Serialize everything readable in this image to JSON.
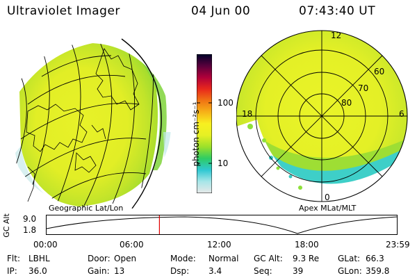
{
  "header": {
    "title": "Ultraviolet Imager",
    "date": "04 Jun 00",
    "time": "07:43:40 UT"
  },
  "left_panel": {
    "caption": "Geographic Lat/Lon"
  },
  "right_panel": {
    "caption": "Apex MLat/MLT",
    "mlt_labels": [
      "12",
      "18",
      "6",
      "0"
    ],
    "lat_labels": [
      "60",
      "70",
      "80"
    ]
  },
  "colorbar": {
    "unit_label": "photon cm⁻²s⁻¹",
    "tick_labels": [
      "100",
      "10"
    ],
    "colors": [
      "#e8e8e8",
      "#a8e6e8",
      "#2fc8d2",
      "#2ecc64",
      "#9be02a",
      "#e6f024",
      "#f8f020",
      "#f6b218",
      "#f07414",
      "#e8281c",
      "#b0003a",
      "#58003c",
      "#000028"
    ]
  },
  "altitude": {
    "axis_label": "GC Alt",
    "y_ticks": [
      "9.0",
      "1.8"
    ],
    "x_ticks": [
      "00:00",
      "06:00",
      "12:00",
      "18:00",
      "23:59"
    ],
    "current_time": "07:43:40"
  },
  "info": [
    [
      {
        "k": "Flt:",
        "v": "LBHL"
      },
      {
        "k": "Door:",
        "v": "Open"
      },
      {
        "k": "Mode:",
        "v": "Normal"
      },
      {
        "k": "GC Alt:",
        "v": "9.3 Re"
      },
      {
        "k": "GLat:",
        "v": "66.3"
      }
    ],
    [
      {
        "k": "IP:",
        "v": "36.0"
      },
      {
        "k": "Gain:",
        "v": "13"
      },
      {
        "k": "Dsp:",
        "v": "3.4"
      },
      {
        "k": "Seq:",
        "v": "39"
      },
      {
        "k": "GLon:",
        "v": "359.8"
      }
    ]
  ]
}
